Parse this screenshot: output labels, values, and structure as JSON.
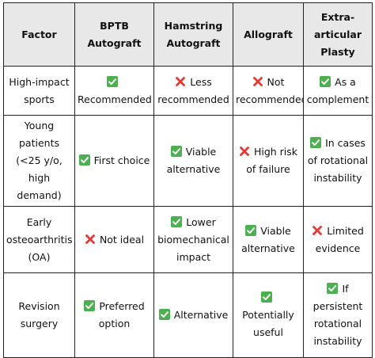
{
  "table": {
    "headers": [
      "Factor",
      "BPTB Autograft",
      "Hamstring Autograft",
      "Allograft",
      "Extra-articular Plasty"
    ],
    "rows": [
      {
        "factor": "High-impact sports",
        "cells": [
          {
            "mark": "check",
            "text": "Recommended"
          },
          {
            "mark": "cross",
            "text": "Less recommended"
          },
          {
            "mark": "cross",
            "text": "Not recommended"
          },
          {
            "mark": "check",
            "text": "As a complement"
          }
        ]
      },
      {
        "factor": "Young patients (<25 y/o, high demand)",
        "cells": [
          {
            "mark": "check",
            "text": "First choice"
          },
          {
            "mark": "check",
            "text": "Viable alternative"
          },
          {
            "mark": "cross",
            "text": "High risk of failure"
          },
          {
            "mark": "check",
            "text": "In cases of rotational instability"
          }
        ]
      },
      {
        "factor": "Early osteoarthritis (OA)",
        "cells": [
          {
            "mark": "cross",
            "text": "Not ideal"
          },
          {
            "mark": "check",
            "text": "Lower biomechanical impact"
          },
          {
            "mark": "check",
            "text": "Viable alternative"
          },
          {
            "mark": "cross",
            "text": "Limited evidence"
          }
        ]
      },
      {
        "factor": "Revision surgery",
        "cells": [
          {
            "mark": "check",
            "text": "Preferred option"
          },
          {
            "mark": "check",
            "text": "Alternative"
          },
          {
            "mark": "check",
            "text": "Potentially useful"
          },
          {
            "mark": "check",
            "text": "If persistent rotational instability"
          }
        ]
      }
    ]
  },
  "colors": {
    "check_bg": "#4caf50",
    "cross": "#e53935",
    "header_bg": "#e8e8e8",
    "border": "#222222"
  },
  "icons": {
    "check": "white-check-in-green-box",
    "cross": "red-cross-mark"
  }
}
